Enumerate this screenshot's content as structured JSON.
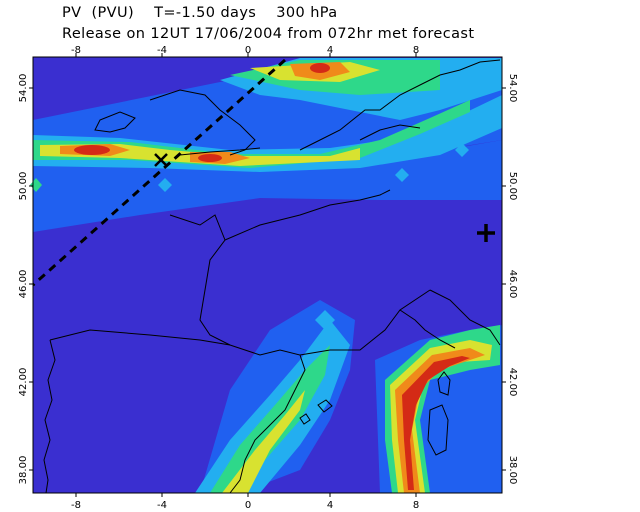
{
  "header": {
    "line1": "PV  (PVU)    T=-1.50 days    300 hPa",
    "line2": "Release on 12UT 17/06/2004 from 072hr met forecast"
  },
  "axes": {
    "lon_ticks": [
      "-8",
      "-4",
      "0",
      "4",
      "8"
    ],
    "lat_ticks": [
      "54.00",
      "50.00",
      "46.00",
      "42.00",
      "38.00"
    ]
  },
  "colors": {
    "background_field": "#3a2fd0",
    "level1": "#2060f0",
    "level2": "#23aef0",
    "level3": "#2ed88a",
    "level4": "#d8e230",
    "level5": "#f08a1a",
    "level6": "#d42a16",
    "coastline": "#000000",
    "trajectory_line": "#000000"
  },
  "markers": {
    "release_marker": "+",
    "trajectory_point": "x"
  }
}
